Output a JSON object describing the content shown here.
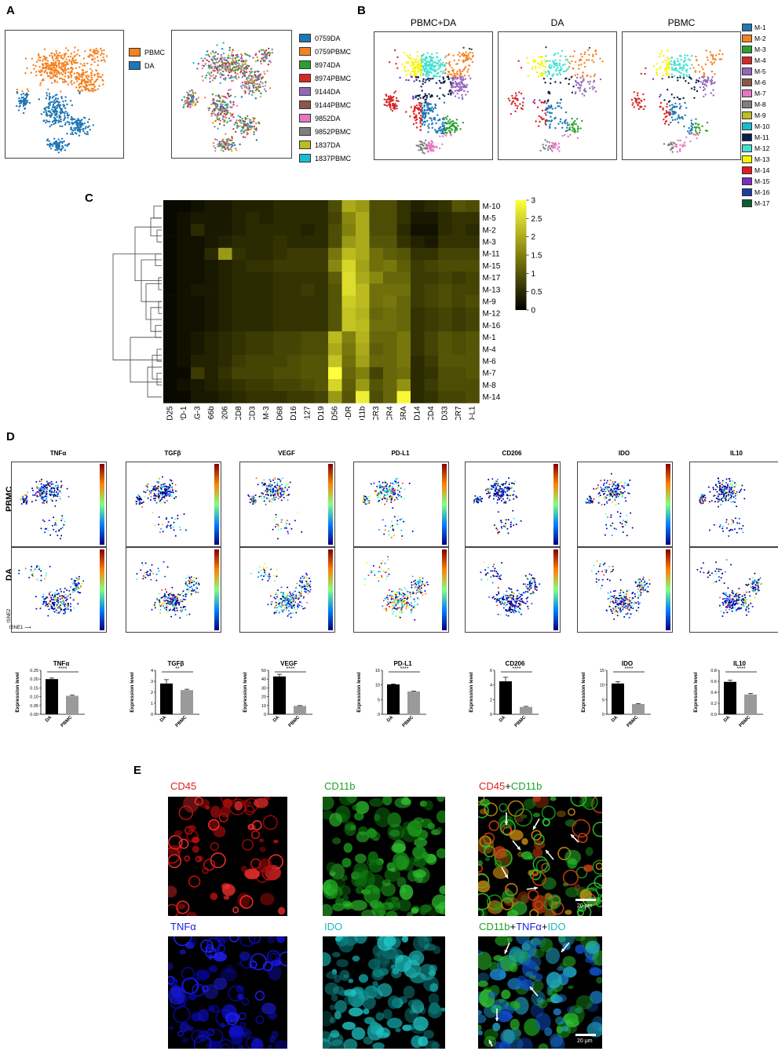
{
  "panels": {
    "a": "A",
    "b": "B",
    "c": "C",
    "d": "D",
    "e": "E"
  },
  "panel_a": {
    "legend1": [
      {
        "label": "PBMC",
        "color": "#f58220"
      },
      {
        "label": "DA",
        "color": "#1f77b4"
      }
    ],
    "legend2": [
      {
        "label": "0759DA",
        "color": "#1f77b4"
      },
      {
        "label": "0759PBMC",
        "color": "#f58220"
      },
      {
        "label": "8974DA",
        "color": "#2ca02c"
      },
      {
        "label": "8974PBMC",
        "color": "#d62728"
      },
      {
        "label": "9144DA",
        "color": "#9467bd"
      },
      {
        "label": "9144PBMC",
        "color": "#8c564b"
      },
      {
        "label": "9852DA",
        "color": "#e377c2"
      },
      {
        "label": "9852PBMC",
        "color": "#7f7f7f"
      },
      {
        "label": "1837DA",
        "color": "#bcbd22"
      },
      {
        "label": "1837PBMC",
        "color": "#17becf"
      }
    ]
  },
  "panel_b": {
    "titles": [
      "PBMC+DA",
      "DA",
      "PBMC"
    ],
    "legend": [
      {
        "label": "M-1",
        "color": "#1f77b4"
      },
      {
        "label": "M-2",
        "color": "#f58220"
      },
      {
        "label": "M-3",
        "color": "#2ca02c"
      },
      {
        "label": "M-4",
        "color": "#d62728"
      },
      {
        "label": "M-5",
        "color": "#9467bd"
      },
      {
        "label": "M-6",
        "color": "#8c564b"
      },
      {
        "label": "M-7",
        "color": "#e377c2"
      },
      {
        "label": "M-8",
        "color": "#7f7f7f"
      },
      {
        "label": "M-9",
        "color": "#bcbd22"
      },
      {
        "label": "M-10",
        "color": "#17becf"
      },
      {
        "label": "M-11",
        "color": "#0b1f4a"
      },
      {
        "label": "M-12",
        "color": "#40e0d0"
      },
      {
        "label": "M-13",
        "color": "#f5f500"
      },
      {
        "label": "M-14",
        "color": "#e41a1c"
      },
      {
        "label": "M-15",
        "color": "#7b2fbe"
      },
      {
        "label": "M-16",
        "color": "#1b3fa0"
      },
      {
        "label": "M-17",
        "color": "#0b5e2e"
      }
    ]
  },
  "chart_data": [
    {
      "type": "heatmap",
      "rows": [
        "M-10",
        "M-5",
        "M-2",
        "M-3",
        "M-11",
        "M-15",
        "M-17",
        "M-13",
        "M-9",
        "M-12",
        "M-16",
        "M-1",
        "M-4",
        "M-6",
        "M-7",
        "M-8",
        "M-14"
      ],
      "columns": [
        "CD25",
        "PD-1",
        "LAG-3",
        "CD66b",
        "CD206",
        "CD8",
        "CD3",
        "TIM-3",
        "CD68",
        "CD16",
        "CD127",
        "CD19",
        "CD56",
        "HLA-DR",
        "CD11b",
        "CXCR3",
        "CCR4",
        "CD45RA",
        "CD14",
        "CD4",
        "CD33",
        "CCR7",
        "PD-L1"
      ],
      "values": [
        [
          0.1,
          0.1,
          0.2,
          0.3,
          0.3,
          0.4,
          0.4,
          0.4,
          0.5,
          0.5,
          0.5,
          0.5,
          0.9,
          2.0,
          1.8,
          0.9,
          0.9,
          0.6,
          0.4,
          0.5,
          0.6,
          1.0,
          0.9
        ],
        [
          0.1,
          0.2,
          0.3,
          0.3,
          0.3,
          0.4,
          0.5,
          0.4,
          0.5,
          0.5,
          0.5,
          0.5,
          0.8,
          1.6,
          2.0,
          0.9,
          0.9,
          0.6,
          0.3,
          0.3,
          0.5,
          0.6,
          0.6
        ],
        [
          0.1,
          0.2,
          0.5,
          0.3,
          0.3,
          0.4,
          0.5,
          0.5,
          0.5,
          0.5,
          0.4,
          0.5,
          0.9,
          1.5,
          2.0,
          0.9,
          0.9,
          0.5,
          0.2,
          0.2,
          0.5,
          0.6,
          0.5
        ],
        [
          0.1,
          0.2,
          0.2,
          0.3,
          0.4,
          0.5,
          0.5,
          0.5,
          0.6,
          0.5,
          0.5,
          0.5,
          0.9,
          1.8,
          2.0,
          1.0,
          1.0,
          0.6,
          0.4,
          0.3,
          0.6,
          0.6,
          0.6
        ],
        [
          0.1,
          0.2,
          0.2,
          0.5,
          1.8,
          0.6,
          0.5,
          0.5,
          0.6,
          0.7,
          0.7,
          0.7,
          1.4,
          2.2,
          2.0,
          1.3,
          1.1,
          1.0,
          0.6,
          0.6,
          0.8,
          0.8,
          0.8
        ],
        [
          0.1,
          0.2,
          0.2,
          0.3,
          0.4,
          0.5,
          0.6,
          0.6,
          0.7,
          0.7,
          0.7,
          0.7,
          1.6,
          2.5,
          1.9,
          1.3,
          1.4,
          1.1,
          0.7,
          0.8,
          0.9,
          0.9,
          0.9
        ],
        [
          0.1,
          0.2,
          0.2,
          0.3,
          0.4,
          0.5,
          0.5,
          0.5,
          0.6,
          0.6,
          0.6,
          0.6,
          1.1,
          2.6,
          2.0,
          1.6,
          1.2,
          1.2,
          0.7,
          0.7,
          0.8,
          0.7,
          0.8
        ],
        [
          0.1,
          0.2,
          0.3,
          0.3,
          0.4,
          0.5,
          0.5,
          0.5,
          0.6,
          0.6,
          0.7,
          0.6,
          1.0,
          2.6,
          2.2,
          1.3,
          1.3,
          1.3,
          0.7,
          0.8,
          0.9,
          0.8,
          0.8
        ],
        [
          0.1,
          0.2,
          0.2,
          0.3,
          0.4,
          0.5,
          0.5,
          0.5,
          0.6,
          0.6,
          0.6,
          0.6,
          1.0,
          2.4,
          2.2,
          1.3,
          1.4,
          1.2,
          0.7,
          0.8,
          0.9,
          0.8,
          0.9
        ],
        [
          0.1,
          0.2,
          0.2,
          0.3,
          0.4,
          0.5,
          0.5,
          0.5,
          0.6,
          0.6,
          0.6,
          0.6,
          1.0,
          2.3,
          2.1,
          1.2,
          1.3,
          1.2,
          0.6,
          0.7,
          0.8,
          0.7,
          0.8
        ],
        [
          0.1,
          0.2,
          0.2,
          0.3,
          0.4,
          0.5,
          0.5,
          0.5,
          0.6,
          0.6,
          0.6,
          0.6,
          1.0,
          2.3,
          2.2,
          1.3,
          1.3,
          1.2,
          0.6,
          0.7,
          0.8,
          0.7,
          0.8
        ],
        [
          0.1,
          0.2,
          0.3,
          0.4,
          0.5,
          0.6,
          0.7,
          0.7,
          0.8,
          0.8,
          0.9,
          0.9,
          2.2,
          1.5,
          2.1,
          1.2,
          1.2,
          1.4,
          0.6,
          0.8,
          1.0,
          0.9,
          1.0
        ],
        [
          0.1,
          0.2,
          0.3,
          0.4,
          0.5,
          0.6,
          0.7,
          0.7,
          0.8,
          0.8,
          0.9,
          0.9,
          2.0,
          1.4,
          2.0,
          1.1,
          1.2,
          1.4,
          0.6,
          0.8,
          1.0,
          0.9,
          1.0
        ],
        [
          0.1,
          0.2,
          0.4,
          0.4,
          0.5,
          0.7,
          0.8,
          0.8,
          0.8,
          0.9,
          1.0,
          1.0,
          2.3,
          1.3,
          1.9,
          1.2,
          1.2,
          1.4,
          0.5,
          0.7,
          1.0,
          1.0,
          1.0
        ],
        [
          0.1,
          0.1,
          0.7,
          0.4,
          0.6,
          0.8,
          0.8,
          0.8,
          0.9,
          0.9,
          1.0,
          1.0,
          3.0,
          1.2,
          1.5,
          0.8,
          1.2,
          1.3,
          0.5,
          0.6,
          0.9,
          0.9,
          1.0
        ],
        [
          0.1,
          0.2,
          0.3,
          0.4,
          0.5,
          0.6,
          0.7,
          0.7,
          0.8,
          0.8,
          0.9,
          1.0,
          2.5,
          1.1,
          1.8,
          1.0,
          1.2,
          1.7,
          0.5,
          0.7,
          0.9,
          0.9,
          0.9
        ],
        [
          0.1,
          0.1,
          0.3,
          0.3,
          0.4,
          0.5,
          0.6,
          0.6,
          0.6,
          0.7,
          0.7,
          0.8,
          1.8,
          1.0,
          2.8,
          0.9,
          1.2,
          2.9,
          0.5,
          0.6,
          0.8,
          0.8,
          0.9
        ]
      ],
      "colorbar_ticks": [
        3,
        2.5,
        2,
        1.5,
        1,
        0.5,
        0
      ],
      "zlim": [
        0,
        3
      ]
    },
    {
      "type": "bar",
      "title": "TNFα",
      "categories": [
        "DA",
        "PBMC"
      ],
      "values": [
        0.2,
        0.105
      ],
      "errors": [
        0.006,
        0.004
      ],
      "ylabel": "Expression level",
      "yticks": [
        "0.00",
        "0.05",
        "0.10",
        "0.15",
        "0.20",
        "0.25"
      ],
      "ylim": [
        0,
        0.25
      ],
      "significance": "****"
    },
    {
      "type": "bar",
      "title": "TGFβ",
      "categories": [
        "DA",
        "PBMC"
      ],
      "values": [
        2.8,
        2.2
      ],
      "errors": [
        0.35,
        0.08
      ],
      "ylabel": "Expression level",
      "yticks": [
        "0",
        "1",
        "2",
        "3",
        "4"
      ],
      "ylim": [
        0,
        4
      ],
      "significance": "**"
    },
    {
      "type": "bar",
      "title": "VEGF",
      "categories": [
        "DA",
        "PBMC"
      ],
      "values": [
        43,
        9.5
      ],
      "errors": [
        2.5,
        0.4
      ],
      "ylabel": "Expression level",
      "yticks": [
        "0",
        "10",
        "20",
        "30",
        "40",
        "50"
      ],
      "ylim": [
        0,
        50
      ],
      "significance": "****"
    },
    {
      "type": "bar",
      "title": "PD-L1",
      "categories": [
        "DA",
        "PBMC"
      ],
      "values": [
        10.2,
        7.8
      ],
      "errors": [
        0.15,
        0.15
      ],
      "ylabel": "Expression level",
      "yticks": [
        "0",
        "5",
        "10",
        "15"
      ],
      "ylim": [
        0,
        15
      ],
      "significance": "****"
    },
    {
      "type": "bar",
      "title": "CD206",
      "categories": [
        "DA",
        "PBMC"
      ],
      "values": [
        4.5,
        1.0
      ],
      "errors": [
        0.55,
        0.08
      ],
      "ylabel": "Expression level",
      "yticks": [
        "0",
        "2",
        "4",
        "6"
      ],
      "ylim": [
        0,
        6
      ],
      "significance": "****"
    },
    {
      "type": "bar",
      "title": "IDO",
      "categories": [
        "DA",
        "PBMC"
      ],
      "values": [
        10.5,
        3.5
      ],
      "errors": [
        0.6,
        0.15
      ],
      "ylabel": "Expression level",
      "yticks": [
        "0",
        "5",
        "10",
        "15"
      ],
      "ylim": [
        0,
        15
      ],
      "significance": "****"
    },
    {
      "type": "bar",
      "title": "IL10",
      "categories": [
        "DA",
        "PBMC"
      ],
      "values": [
        0.59,
        0.36
      ],
      "errors": [
        0.03,
        0.02
      ],
      "ylabel": "Expression level",
      "yticks": [
        "0.0",
        "0.2",
        "0.4",
        "0.6",
        "0.8"
      ],
      "ylim": [
        0,
        0.8
      ],
      "significance": "****"
    }
  ],
  "panel_d": {
    "titles": [
      "TNFα",
      "TGFβ",
      "VEGF",
      "PD-L1",
      "CD206",
      "IDO",
      "IL10"
    ],
    "row_labels": [
      "PBMC",
      "DA"
    ],
    "axis_y": "tSNE2",
    "axis_x": "tSNE1"
  },
  "panel_e": {
    "titles_row1": {
      "cd45": "CD45",
      "cd11b": "CD11b",
      "merge_a": "CD45",
      "merge_plus": "+",
      "merge_b": "CD11b"
    },
    "titles_row2": {
      "tnfa": "TNFα",
      "ido": "IDO",
      "m_a": "CD11b",
      "m_p1": "+",
      "m_b": "TNFα",
      "m_p2": "+",
      "m_c": "IDO"
    },
    "scale_label": "20 μm"
  }
}
